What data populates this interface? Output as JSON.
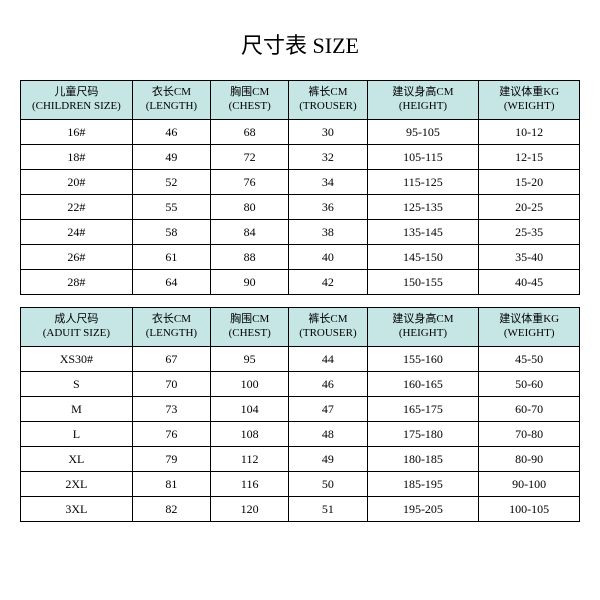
{
  "title": "尺寸表 SIZE",
  "header_bg": "#c5e6e5",
  "border_color": "#000000",
  "children_table": {
    "columns": [
      {
        "cn": "儿童尺码",
        "en": "(CHILDREN SIZE)"
      },
      {
        "cn": "衣长CM",
        "en": "(LENGTH)"
      },
      {
        "cn": "胸围CM",
        "en": "(CHEST)"
      },
      {
        "cn": "裤长CM",
        "en": "(TROUSER)"
      },
      {
        "cn": "建议身高CM",
        "en": "(HEIGHT)"
      },
      {
        "cn": "建议体重KG",
        "en": "(WEIGHT)"
      }
    ],
    "rows": [
      [
        "16#",
        "46",
        "68",
        "30",
        "95-105",
        "10-12"
      ],
      [
        "18#",
        "49",
        "72",
        "32",
        "105-115",
        "12-15"
      ],
      [
        "20#",
        "52",
        "76",
        "34",
        "115-125",
        "15-20"
      ],
      [
        "22#",
        "55",
        "80",
        "36",
        "125-135",
        "20-25"
      ],
      [
        "24#",
        "58",
        "84",
        "38",
        "135-145",
        "25-35"
      ],
      [
        "26#",
        "61",
        "88",
        "40",
        "145-150",
        "35-40"
      ],
      [
        "28#",
        "64",
        "90",
        "42",
        "150-155",
        "40-45"
      ]
    ]
  },
  "adult_table": {
    "columns": [
      {
        "cn": "成人尺码",
        "en": "(ADUIT SIZE)"
      },
      {
        "cn": "衣长CM",
        "en": "(LENGTH)"
      },
      {
        "cn": "胸围CM",
        "en": "(CHEST)"
      },
      {
        "cn": "裤长CM",
        "en": "(TROUSER)"
      },
      {
        "cn": "建议身高CM",
        "en": "(HEIGHT)"
      },
      {
        "cn": "建议体重KG",
        "en": "(WEIGHT)"
      }
    ],
    "rows": [
      [
        "XS30#",
        "67",
        "95",
        "44",
        "155-160",
        "45-50"
      ],
      [
        "S",
        "70",
        "100",
        "46",
        "160-165",
        "50-60"
      ],
      [
        "M",
        "73",
        "104",
        "47",
        "165-175",
        "60-70"
      ],
      [
        "L",
        "76",
        "108",
        "48",
        "175-180",
        "70-80"
      ],
      [
        "XL",
        "79",
        "112",
        "49",
        "180-185",
        "80-90"
      ],
      [
        "2XL",
        "81",
        "116",
        "50",
        "185-195",
        "90-100"
      ],
      [
        "3XL",
        "82",
        "120",
        "51",
        "195-205",
        "100-105"
      ]
    ]
  }
}
